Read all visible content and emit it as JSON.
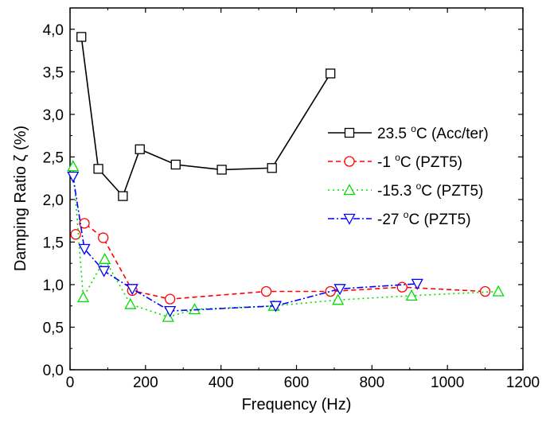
{
  "chart_data": {
    "type": "line",
    "xlabel": "Frequency (Hz)",
    "ylabel": "Damping Ratio  ζ (%)",
    "xlim": [
      0,
      1200
    ],
    "ylim": [
      0,
      4.25
    ],
    "xticks": [
      0,
      200,
      400,
      600,
      800,
      1000,
      1200
    ],
    "xtick_labels": [
      "0",
      "200",
      "400",
      "600",
      "800",
      "1000",
      "1200"
    ],
    "yticks": [
      0,
      0.5,
      1.0,
      1.5,
      2.0,
      2.5,
      3.0,
      3.5,
      4.0
    ],
    "ytick_labels": [
      "0,0",
      "0,5",
      "1,0",
      "1,5",
      "2,0",
      "2,5",
      "3,0",
      "3,5",
      "4,0"
    ],
    "grid": false,
    "legend_position": "right",
    "series": [
      {
        "name": "23.5 °C (Acc/ter)",
        "legend": {
          "pre": "23.5 ",
          "sup": "o",
          "post": "C (Acc/ter)"
        },
        "color": "#000000",
        "marker": "square",
        "dash": "solid",
        "points": [
          [
            30,
            3.91
          ],
          [
            75,
            2.36
          ],
          [
            140,
            2.04
          ],
          [
            185,
            2.59
          ],
          [
            280,
            2.41
          ],
          [
            402,
            2.35
          ],
          [
            535,
            2.37
          ],
          [
            690,
            3.48
          ]
        ]
      },
      {
        "name": "-1 °C (PZT5)",
        "legend": {
          "pre": "-1 ",
          "sup": "o",
          "post": "C (PZT5)"
        },
        "color": "#ff0000",
        "marker": "circle",
        "dash": "dash",
        "points": [
          [
            15,
            1.59
          ],
          [
            38,
            1.72
          ],
          [
            88,
            1.55
          ],
          [
            165,
            0.93
          ],
          [
            265,
            0.83
          ],
          [
            520,
            0.92
          ],
          [
            690,
            0.92
          ],
          [
            880,
            0.97
          ],
          [
            1100,
            0.92
          ]
        ]
      },
      {
        "name": "-15.3 °C (PZT5)",
        "legend": {
          "pre": "-15.3 ",
          "sup": "o",
          "post": "C (PZT5)"
        },
        "color": "#00dd00",
        "marker": "triangle-up",
        "dash": "dot",
        "points": [
          [
            8,
            2.39
          ],
          [
            35,
            0.85
          ],
          [
            92,
            1.3
          ],
          [
            160,
            0.77
          ],
          [
            260,
            0.62
          ],
          [
            330,
            0.71
          ],
          [
            540,
            0.75
          ],
          [
            710,
            0.82
          ],
          [
            905,
            0.87
          ],
          [
            1135,
            0.92
          ]
        ]
      },
      {
        "name": "-27 °C (PZT5)",
        "legend": {
          "pre": "-27 ",
          "sup": "o",
          "post": "C (PZT5)"
        },
        "color": "#0000ff",
        "marker": "triangle-down",
        "dash": "dashdot",
        "points": [
          [
            8,
            2.27
          ],
          [
            38,
            1.42
          ],
          [
            90,
            1.16
          ],
          [
            165,
            0.95
          ],
          [
            265,
            0.69
          ],
          [
            545,
            0.75
          ],
          [
            715,
            0.95
          ],
          [
            920,
            1.01
          ]
        ]
      }
    ]
  }
}
